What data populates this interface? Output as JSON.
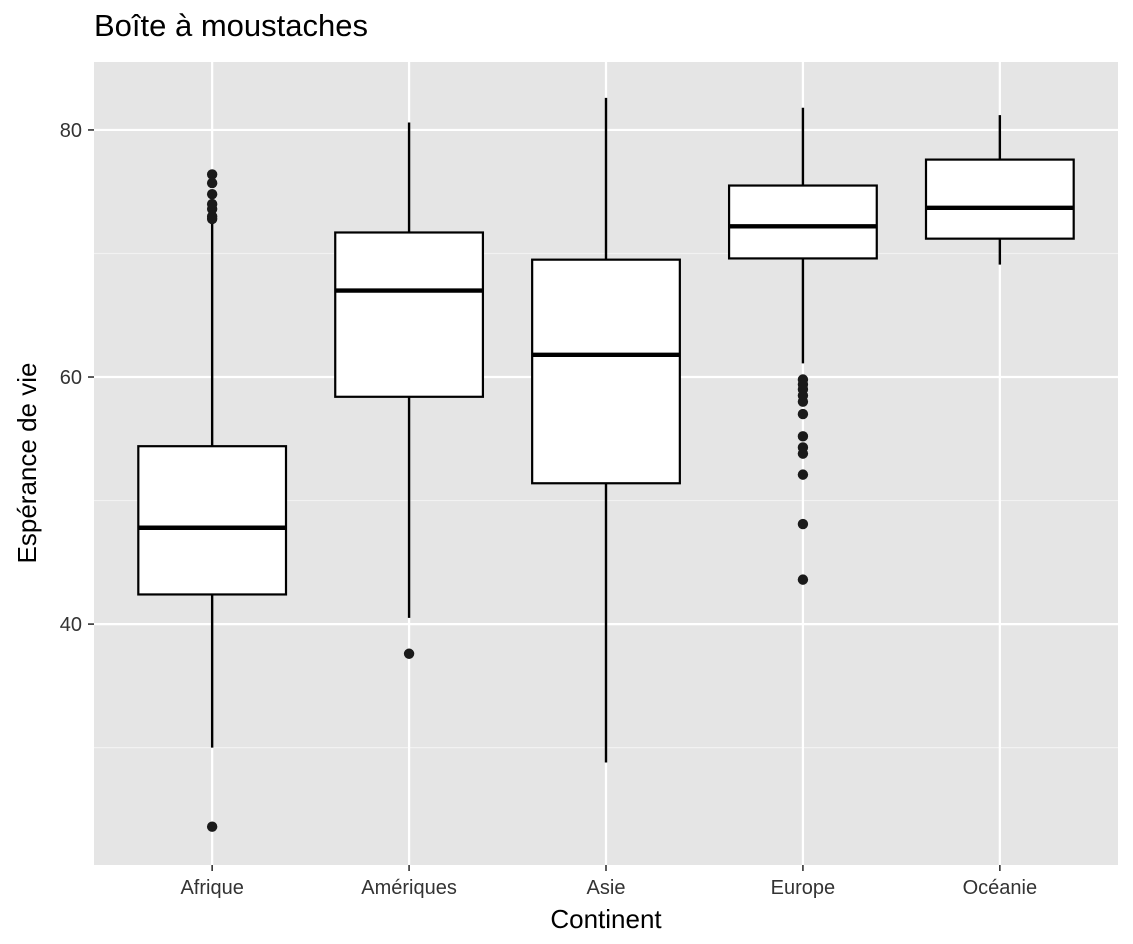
{
  "chart_data": {
    "type": "boxplot",
    "title": "Boîte à moustaches",
    "xlabel": "Continent",
    "ylabel": "Espérance de vie",
    "ylim": [
      20.5,
      85.5
    ],
    "yticks": [
      40,
      60,
      80
    ],
    "grid": true,
    "categories": [
      "Afrique",
      "Amériques",
      "Asie",
      "Europe",
      "Océanie"
    ],
    "boxes": [
      {
        "category": "Afrique",
        "whisker_low": 30.0,
        "q1": 42.4,
        "median": 47.8,
        "q3": 54.4,
        "whisker_high": 72.6,
        "outliers": [
          23.6,
          72.8,
          73.0,
          73.6,
          74.0,
          74.8,
          75.7,
          76.4
        ]
      },
      {
        "category": "Amériques",
        "whisker_low": 40.5,
        "q1": 58.4,
        "median": 67.0,
        "q3": 71.7,
        "whisker_high": 80.6,
        "outliers": [
          37.6
        ]
      },
      {
        "category": "Asie",
        "whisker_low": 28.8,
        "q1": 51.4,
        "median": 61.8,
        "q3": 69.5,
        "whisker_high": 82.6,
        "outliers": []
      },
      {
        "category": "Europe",
        "whisker_low": 61.1,
        "q1": 69.6,
        "median": 72.2,
        "q3": 75.5,
        "whisker_high": 81.8,
        "outliers": [
          43.6,
          48.1,
          52.1,
          53.8,
          54.3,
          55.2,
          57.0,
          58.0,
          58.5,
          59.0,
          59.4,
          59.8
        ]
      },
      {
        "category": "Océanie",
        "whisker_low": 69.1,
        "q1": 71.2,
        "median": 73.7,
        "q3": 77.6,
        "whisker_high": 81.2,
        "outliers": []
      }
    ],
    "colors": {
      "panel": "#e5e5e5",
      "grid_major": "#ffffff",
      "grid_minor": "#f2f2f2",
      "box_fill": "#ffffff",
      "box_stroke": "#000000",
      "outlier": "#1a1a1a"
    }
  }
}
